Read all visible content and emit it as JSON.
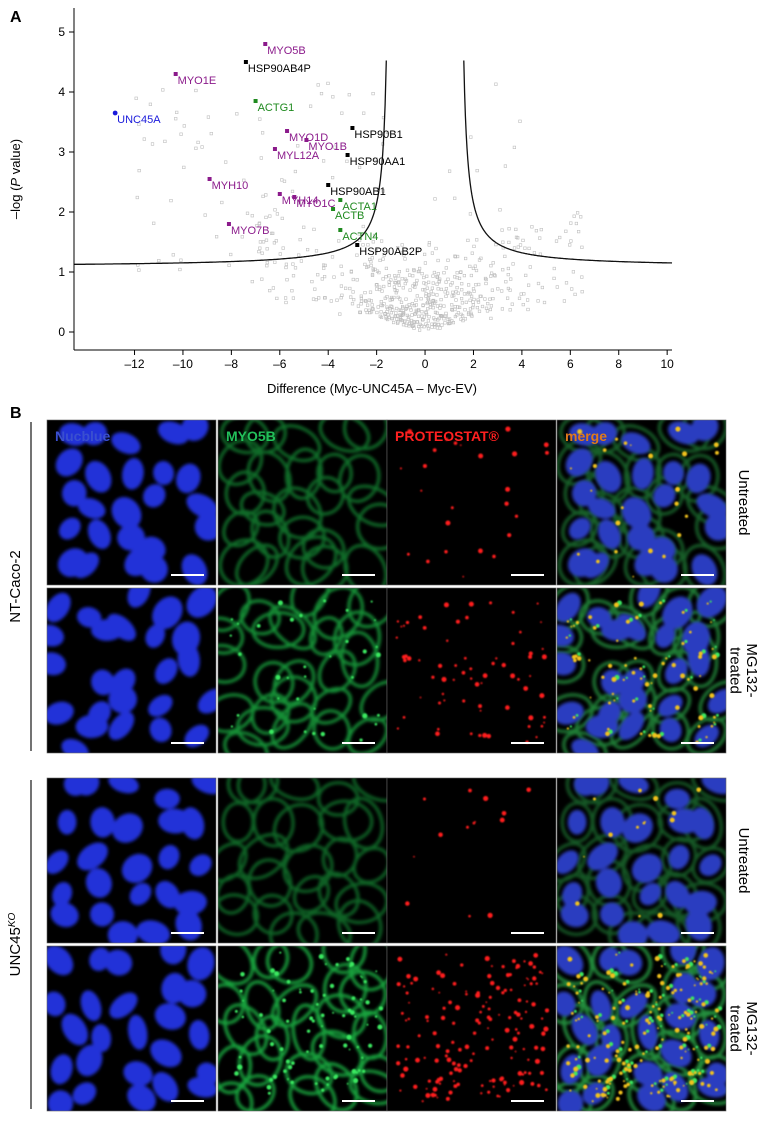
{
  "panel_a_letter": "A",
  "panel_b_letter": "B",
  "chart_data": {
    "type": "scatter",
    "title": "",
    "xlabel": "Difference (Myc-UNC45A – Myc-EV)",
    "ylabel_prefix": "–log (",
    "ylabel_italic": "P",
    "ylabel_suffix": " value)",
    "xlim": [
      -14.5,
      10.2
    ],
    "ylim": [
      -0.3,
      5.4
    ],
    "x_ticks": [
      -12,
      -10,
      -8,
      -6,
      -4,
      -2,
      0,
      2,
      4,
      6,
      8,
      10
    ],
    "y_ticks": [
      0,
      1,
      2,
      3,
      4,
      5
    ],
    "grid": false,
    "threshold_curve": {
      "s0": 0.06,
      "c": 1.08
    },
    "background_points": {
      "color": "#bdbdbd",
      "count": 650,
      "seed": 20190711
    },
    "labeled_series": [
      {
        "group": "myosin",
        "color": "#8b1a8b",
        "points": [
          {
            "label": "MYO5B",
            "x": -6.6,
            "y": 4.8
          },
          {
            "label": "MYO1E",
            "x": -10.3,
            "y": 4.3
          },
          {
            "label": "MYO1D",
            "x": -5.7,
            "y": 3.35
          },
          {
            "label": "MYO1B",
            "x": -4.9,
            "y": 3.2
          },
          {
            "label": "MYL12A",
            "x": -6.2,
            "y": 3.05
          },
          {
            "label": "MYH10",
            "x": -8.9,
            "y": 2.55
          },
          {
            "label": "MYH14",
            "x": -6.0,
            "y": 2.3
          },
          {
            "label": "MYO1C",
            "x": -5.4,
            "y": 2.25
          },
          {
            "label": "MYO7B",
            "x": -8.1,
            "y": 1.8
          }
        ]
      },
      {
        "group": "actin",
        "color": "#1f8a1f",
        "points": [
          {
            "label": "ACTG1",
            "x": -7.0,
            "y": 3.85
          },
          {
            "label": "ACTA1",
            "x": -3.5,
            "y": 2.2
          },
          {
            "label": "ACTB",
            "x": -3.8,
            "y": 2.05
          },
          {
            "label": "ACTN4",
            "x": -3.5,
            "y": 1.7
          }
        ]
      },
      {
        "group": "hsp90",
        "color": "#000000",
        "points": [
          {
            "label": "HSP90AB4P",
            "x": -7.4,
            "y": 4.5
          },
          {
            "label": "HSP90B1",
            "x": -3.0,
            "y": 3.4
          },
          {
            "label": "HSP90AA1",
            "x": -3.2,
            "y": 2.95
          },
          {
            "label": "HSP90AB1",
            "x": -4.0,
            "y": 2.45
          },
          {
            "label": "HSP90AB2P",
            "x": -2.8,
            "y": 1.45
          }
        ]
      },
      {
        "group": "bait",
        "color": "#1a1adb",
        "points": [
          {
            "label": "UNC45A",
            "x": -12.8,
            "y": 3.65
          }
        ]
      }
    ]
  },
  "panel_b": {
    "channels": [
      {
        "label": "Nucblue",
        "color": "#3a4fd0"
      },
      {
        "label": "MYO5B",
        "color": "#22c05a"
      },
      {
        "label": "PROTEOSTAT®",
        "color": "#ff2020"
      },
      {
        "label": "merge",
        "color": "#e07a1a"
      }
    ],
    "groups": [
      {
        "label": "NT-Caco-2",
        "label_main": "NT-Caco-2",
        "label_sup": ""
      },
      {
        "label": "UNC45KO",
        "label_main": "UNC45",
        "label_sup": "KO"
      }
    ],
    "conditions": [
      "Untreated",
      "MG132- treated"
    ],
    "rows": [
      {
        "group": 0,
        "condition": "Untreated",
        "label_lines": [
          "Untreated"
        ],
        "green": 0.45,
        "red": 0.12
      },
      {
        "group": 0,
        "condition": "MG132- treated",
        "label_lines": [
          "MG132-",
          "treated"
        ],
        "green": 0.8,
        "red": 0.4
      },
      {
        "group": 1,
        "condition": "Untreated",
        "label_lines": [
          "Untreated"
        ],
        "green": 0.35,
        "red": 0.05
      },
      {
        "group": 1,
        "condition": "MG132- treated",
        "label_lines": [
          "MG132-",
          "treated"
        ],
        "green": 1.0,
        "red": 1.0
      }
    ]
  }
}
